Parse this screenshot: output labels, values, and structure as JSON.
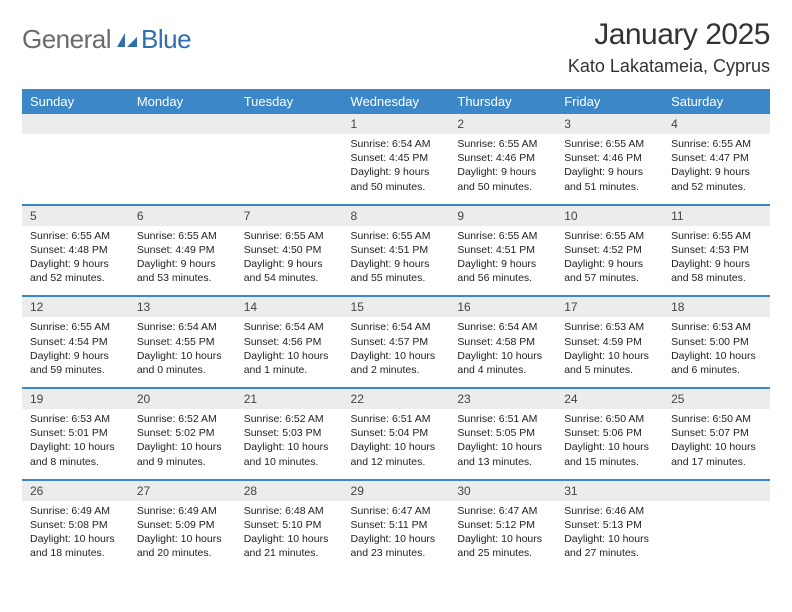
{
  "brand": {
    "part1": "General",
    "part2": "Blue",
    "logo_color": "#2f6fb0",
    "text_gray": "#6b6b6b"
  },
  "title": {
    "month_year": "January 2025",
    "location": "Kato Lakatameia, Cyprus"
  },
  "colors": {
    "header_bg": "#3b87c8",
    "header_fg": "#ffffff",
    "daynum_bg": "#ececec",
    "body_fg": "#222222",
    "page_bg": "#ffffff"
  },
  "typography": {
    "title_fontsize": 30,
    "location_fontsize": 18,
    "dow_fontsize": 13,
    "daynum_fontsize": 12,
    "body_fontsize": 10.5
  },
  "dow": [
    "Sunday",
    "Monday",
    "Tuesday",
    "Wednesday",
    "Thursday",
    "Friday",
    "Saturday"
  ],
  "weeks": [
    [
      null,
      null,
      null,
      {
        "n": "1",
        "sr": "Sunrise: 6:54 AM",
        "ss": "Sunset: 4:45 PM",
        "d1": "Daylight: 9 hours",
        "d2": "and 50 minutes."
      },
      {
        "n": "2",
        "sr": "Sunrise: 6:55 AM",
        "ss": "Sunset: 4:46 PM",
        "d1": "Daylight: 9 hours",
        "d2": "and 50 minutes."
      },
      {
        "n": "3",
        "sr": "Sunrise: 6:55 AM",
        "ss": "Sunset: 4:46 PM",
        "d1": "Daylight: 9 hours",
        "d2": "and 51 minutes."
      },
      {
        "n": "4",
        "sr": "Sunrise: 6:55 AM",
        "ss": "Sunset: 4:47 PM",
        "d1": "Daylight: 9 hours",
        "d2": "and 52 minutes."
      }
    ],
    [
      {
        "n": "5",
        "sr": "Sunrise: 6:55 AM",
        "ss": "Sunset: 4:48 PM",
        "d1": "Daylight: 9 hours",
        "d2": "and 52 minutes."
      },
      {
        "n": "6",
        "sr": "Sunrise: 6:55 AM",
        "ss": "Sunset: 4:49 PM",
        "d1": "Daylight: 9 hours",
        "d2": "and 53 minutes."
      },
      {
        "n": "7",
        "sr": "Sunrise: 6:55 AM",
        "ss": "Sunset: 4:50 PM",
        "d1": "Daylight: 9 hours",
        "d2": "and 54 minutes."
      },
      {
        "n": "8",
        "sr": "Sunrise: 6:55 AM",
        "ss": "Sunset: 4:51 PM",
        "d1": "Daylight: 9 hours",
        "d2": "and 55 minutes."
      },
      {
        "n": "9",
        "sr": "Sunrise: 6:55 AM",
        "ss": "Sunset: 4:51 PM",
        "d1": "Daylight: 9 hours",
        "d2": "and 56 minutes."
      },
      {
        "n": "10",
        "sr": "Sunrise: 6:55 AM",
        "ss": "Sunset: 4:52 PM",
        "d1": "Daylight: 9 hours",
        "d2": "and 57 minutes."
      },
      {
        "n": "11",
        "sr": "Sunrise: 6:55 AM",
        "ss": "Sunset: 4:53 PM",
        "d1": "Daylight: 9 hours",
        "d2": "and 58 minutes."
      }
    ],
    [
      {
        "n": "12",
        "sr": "Sunrise: 6:55 AM",
        "ss": "Sunset: 4:54 PM",
        "d1": "Daylight: 9 hours",
        "d2": "and 59 minutes."
      },
      {
        "n": "13",
        "sr": "Sunrise: 6:54 AM",
        "ss": "Sunset: 4:55 PM",
        "d1": "Daylight: 10 hours",
        "d2": "and 0 minutes."
      },
      {
        "n": "14",
        "sr": "Sunrise: 6:54 AM",
        "ss": "Sunset: 4:56 PM",
        "d1": "Daylight: 10 hours",
        "d2": "and 1 minute."
      },
      {
        "n": "15",
        "sr": "Sunrise: 6:54 AM",
        "ss": "Sunset: 4:57 PM",
        "d1": "Daylight: 10 hours",
        "d2": "and 2 minutes."
      },
      {
        "n": "16",
        "sr": "Sunrise: 6:54 AM",
        "ss": "Sunset: 4:58 PM",
        "d1": "Daylight: 10 hours",
        "d2": "and 4 minutes."
      },
      {
        "n": "17",
        "sr": "Sunrise: 6:53 AM",
        "ss": "Sunset: 4:59 PM",
        "d1": "Daylight: 10 hours",
        "d2": "and 5 minutes."
      },
      {
        "n": "18",
        "sr": "Sunrise: 6:53 AM",
        "ss": "Sunset: 5:00 PM",
        "d1": "Daylight: 10 hours",
        "d2": "and 6 minutes."
      }
    ],
    [
      {
        "n": "19",
        "sr": "Sunrise: 6:53 AM",
        "ss": "Sunset: 5:01 PM",
        "d1": "Daylight: 10 hours",
        "d2": "and 8 minutes."
      },
      {
        "n": "20",
        "sr": "Sunrise: 6:52 AM",
        "ss": "Sunset: 5:02 PM",
        "d1": "Daylight: 10 hours",
        "d2": "and 9 minutes."
      },
      {
        "n": "21",
        "sr": "Sunrise: 6:52 AM",
        "ss": "Sunset: 5:03 PM",
        "d1": "Daylight: 10 hours",
        "d2": "and 10 minutes."
      },
      {
        "n": "22",
        "sr": "Sunrise: 6:51 AM",
        "ss": "Sunset: 5:04 PM",
        "d1": "Daylight: 10 hours",
        "d2": "and 12 minutes."
      },
      {
        "n": "23",
        "sr": "Sunrise: 6:51 AM",
        "ss": "Sunset: 5:05 PM",
        "d1": "Daylight: 10 hours",
        "d2": "and 13 minutes."
      },
      {
        "n": "24",
        "sr": "Sunrise: 6:50 AM",
        "ss": "Sunset: 5:06 PM",
        "d1": "Daylight: 10 hours",
        "d2": "and 15 minutes."
      },
      {
        "n": "25",
        "sr": "Sunrise: 6:50 AM",
        "ss": "Sunset: 5:07 PM",
        "d1": "Daylight: 10 hours",
        "d2": "and 17 minutes."
      }
    ],
    [
      {
        "n": "26",
        "sr": "Sunrise: 6:49 AM",
        "ss": "Sunset: 5:08 PM",
        "d1": "Daylight: 10 hours",
        "d2": "and 18 minutes."
      },
      {
        "n": "27",
        "sr": "Sunrise: 6:49 AM",
        "ss": "Sunset: 5:09 PM",
        "d1": "Daylight: 10 hours",
        "d2": "and 20 minutes."
      },
      {
        "n": "28",
        "sr": "Sunrise: 6:48 AM",
        "ss": "Sunset: 5:10 PM",
        "d1": "Daylight: 10 hours",
        "d2": "and 21 minutes."
      },
      {
        "n": "29",
        "sr": "Sunrise: 6:47 AM",
        "ss": "Sunset: 5:11 PM",
        "d1": "Daylight: 10 hours",
        "d2": "and 23 minutes."
      },
      {
        "n": "30",
        "sr": "Sunrise: 6:47 AM",
        "ss": "Sunset: 5:12 PM",
        "d1": "Daylight: 10 hours",
        "d2": "and 25 minutes."
      },
      {
        "n": "31",
        "sr": "Sunrise: 6:46 AM",
        "ss": "Sunset: 5:13 PM",
        "d1": "Daylight: 10 hours",
        "d2": "and 27 minutes."
      },
      null
    ]
  ]
}
